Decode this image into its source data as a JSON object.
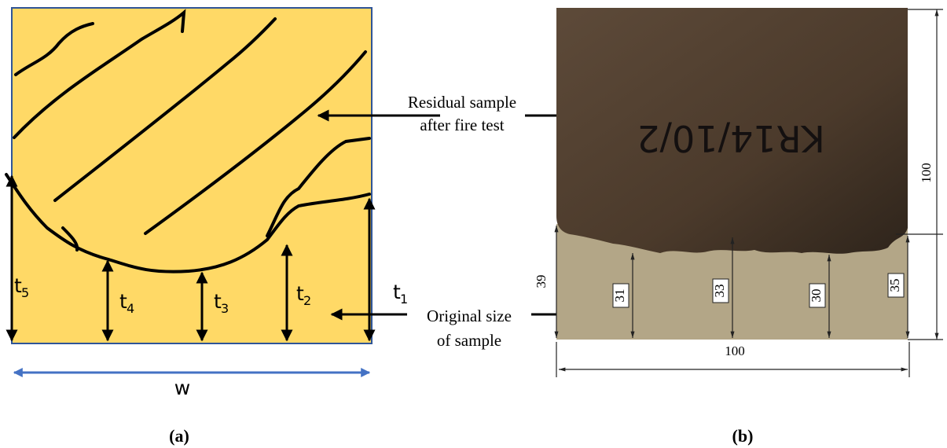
{
  "panel_a": {
    "thicknesses": [
      {
        "main": "t",
        "sub": "1"
      },
      {
        "main": "t",
        "sub": "2"
      },
      {
        "main": "t",
        "sub": "3"
      },
      {
        "main": "t",
        "sub": "4"
      },
      {
        "main": "t",
        "sub": "5"
      }
    ],
    "width_label": "w",
    "caption": "(a)"
  },
  "panel_b": {
    "residual_label": [
      "Residual sample",
      "after fire test"
    ],
    "original_label": [
      "Original size",
      "of sample"
    ],
    "sample_marking": "KR14/10/2",
    "height": "100",
    "width": "100",
    "original_thickness": "39",
    "residual_thicknesses": [
      "31",
      "33",
      "30",
      "35"
    ],
    "caption": "(b)"
  }
}
